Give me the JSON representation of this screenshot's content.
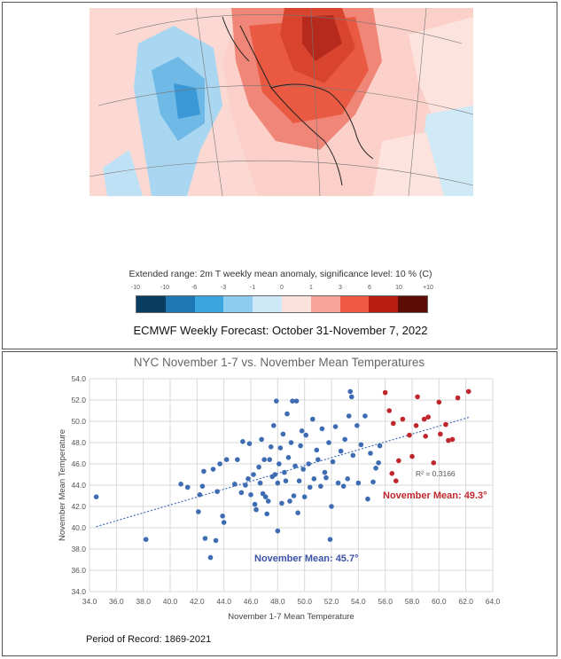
{
  "forecast": {
    "legend_title": "Extended range: 2m T weekly mean anomaly, significance level: 10 % (C)",
    "legend_ticks": [
      "-10",
      "-10",
      "-6",
      "-3",
      "-1",
      "0",
      "1",
      "3",
      "6",
      "10",
      "+10"
    ],
    "legend_colors": [
      "#0a3d62",
      "#1f78b4",
      "#3ba5e0",
      "#8fcdf0",
      "#cde9f7",
      "#fde1dc",
      "#f7a39a",
      "#ee5a45",
      "#b81d12",
      "#5e0c08"
    ],
    "caption": "ECMWF Weekly Forecast: October 31-November 7, 2022"
  },
  "period_of_record": "Period of Record: 1869-2021",
  "chart_data": {
    "type": "scatter",
    "title": "NYC November 1-7 vs. November Mean Temperatures",
    "xlabel": "November  1-7 Mean Temperature",
    "ylabel": "November  Mean Temperature",
    "xlim": [
      34.0,
      64.0
    ],
    "ylim": [
      34.0,
      54.0
    ],
    "xticks": [
      "34.0",
      "36.0",
      "38.0",
      "40.0",
      "42.0",
      "44.0",
      "46.0",
      "48.0",
      "50.0",
      "52.0",
      "54.0",
      "56.0",
      "58.0",
      "60.0",
      "62.0",
      "64.0"
    ],
    "yticks": [
      "34.0",
      "36.0",
      "38.0",
      "40.0",
      "42.0",
      "44.0",
      "46.0",
      "48.0",
      "50.0",
      "52.0",
      "54.0"
    ],
    "grid": true,
    "trendline": {
      "x": [
        34.5,
        62.3
      ],
      "y": [
        40.1,
        50.4
      ],
      "r2_label": "R² = 0.3166"
    },
    "annotations": [
      {
        "text": "November Mean: 45.7°",
        "color": "#3a52a8"
      },
      {
        "text": "November Mean: 49.3°",
        "color": "#c0272d"
      }
    ],
    "series": [
      {
        "color": "#3e6cb3",
        "points": [
          [
            34.5,
            42.9
          ],
          [
            38.2,
            38.9
          ],
          [
            40.8,
            44.1
          ],
          [
            41.3,
            43.8
          ],
          [
            42.1,
            41.5
          ],
          [
            42.2,
            43.1
          ],
          [
            42.4,
            43.9
          ],
          [
            42.5,
            45.3
          ],
          [
            42.6,
            39.0
          ],
          [
            43.0,
            37.2
          ],
          [
            43.2,
            45.5
          ],
          [
            43.4,
            38.8
          ],
          [
            43.5,
            43.4
          ],
          [
            43.7,
            46.0
          ],
          [
            43.9,
            41.1
          ],
          [
            44.0,
            40.5
          ],
          [
            44.2,
            46.4
          ],
          [
            44.8,
            44.1
          ],
          [
            45.0,
            46.4
          ],
          [
            45.3,
            43.3
          ],
          [
            45.4,
            48.1
          ],
          [
            45.6,
            44.0
          ],
          [
            45.8,
            44.6
          ],
          [
            45.9,
            47.9
          ],
          [
            46.0,
            43.1
          ],
          [
            46.2,
            45.0
          ],
          [
            46.3,
            42.2
          ],
          [
            46.4,
            41.7
          ],
          [
            46.6,
            45.7
          ],
          [
            46.7,
            44.2
          ],
          [
            46.8,
            48.3
          ],
          [
            46.9,
            43.2
          ],
          [
            47.0,
            46.4
          ],
          [
            47.1,
            42.9
          ],
          [
            47.2,
            41.3
          ],
          [
            47.3,
            42.5
          ],
          [
            47.4,
            46.4
          ],
          [
            47.5,
            47.6
          ],
          [
            47.6,
            44.8
          ],
          [
            47.7,
            49.6
          ],
          [
            47.8,
            45.0
          ],
          [
            47.9,
            51.9
          ],
          [
            48.0,
            39.7
          ],
          [
            48.0,
            44.2
          ],
          [
            48.1,
            46.0
          ],
          [
            48.2,
            47.5
          ],
          [
            48.3,
            42.3
          ],
          [
            48.4,
            48.8
          ],
          [
            48.5,
            45.2
          ],
          [
            48.6,
            44.4
          ],
          [
            48.7,
            50.7
          ],
          [
            48.8,
            46.6
          ],
          [
            48.9,
            42.5
          ],
          [
            49.0,
            48.0
          ],
          [
            49.1,
            51.9
          ],
          [
            49.2,
            43.0
          ],
          [
            49.3,
            45.8
          ],
          [
            49.4,
            51.9
          ],
          [
            49.5,
            41.4
          ],
          [
            49.6,
            44.4
          ],
          [
            49.7,
            47.7
          ],
          [
            49.8,
            49.1
          ],
          [
            49.9,
            45.5
          ],
          [
            50.0,
            42.9
          ],
          [
            50.1,
            48.7
          ],
          [
            50.3,
            46.0
          ],
          [
            50.4,
            43.8
          ],
          [
            50.6,
            50.2
          ],
          [
            50.7,
            44.6
          ],
          [
            50.9,
            47.3
          ],
          [
            51.0,
            46.4
          ],
          [
            51.2,
            43.9
          ],
          [
            51.3,
            49.3
          ],
          [
            51.5,
            45.2
          ],
          [
            51.6,
            44.7
          ],
          [
            51.8,
            48.0
          ],
          [
            51.9,
            38.9
          ],
          [
            52.0,
            42.0
          ],
          [
            52.1,
            46.2
          ],
          [
            52.3,
            49.5
          ],
          [
            52.5,
            44.2
          ],
          [
            52.7,
            47.2
          ],
          [
            52.9,
            43.9
          ],
          [
            53.0,
            48.3
          ],
          [
            53.2,
            44.6
          ],
          [
            53.3,
            50.5
          ],
          [
            53.4,
            52.8
          ],
          [
            53.5,
            52.3
          ],
          [
            53.6,
            46.8
          ],
          [
            53.9,
            49.6
          ],
          [
            54.0,
            44.2
          ],
          [
            54.2,
            47.8
          ],
          [
            54.5,
            50.5
          ],
          [
            54.7,
            42.7
          ],
          [
            54.9,
            47.0
          ],
          [
            55.1,
            44.3
          ],
          [
            55.3,
            45.6
          ],
          [
            55.5,
            46.1
          ],
          [
            55.6,
            47.7
          ]
        ]
      },
      {
        "color": "#c0272d",
        "points": [
          [
            56.0,
            52.7
          ],
          [
            56.3,
            51.0
          ],
          [
            56.5,
            45.1
          ],
          [
            56.6,
            49.8
          ],
          [
            56.8,
            44.4
          ],
          [
            57.0,
            46.3
          ],
          [
            57.3,
            50.2
          ],
          [
            57.8,
            48.7
          ],
          [
            58.0,
            46.7
          ],
          [
            58.3,
            49.6
          ],
          [
            58.4,
            52.3
          ],
          [
            58.9,
            50.2
          ],
          [
            59.0,
            48.6
          ],
          [
            59.2,
            50.4
          ],
          [
            59.6,
            46.1
          ],
          [
            60.0,
            51.8
          ],
          [
            60.1,
            48.8
          ],
          [
            60.5,
            49.7
          ],
          [
            60.7,
            48.2
          ],
          [
            61.0,
            48.3
          ],
          [
            61.4,
            52.2
          ],
          [
            62.2,
            52.8
          ]
        ]
      }
    ]
  }
}
